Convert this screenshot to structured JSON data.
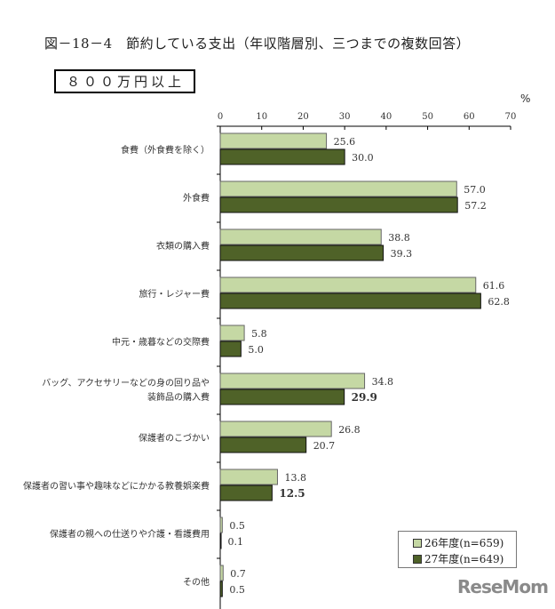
{
  "chart_data": {
    "type": "bar",
    "orientation": "horizontal",
    "title": "図－18－4　節約している支出（年収階層別、三つまでの複数回答）",
    "subtitle": "８００万円以上",
    "unit": "%",
    "xlim": [
      0,
      70
    ],
    "ticks": [
      "0",
      "10",
      "20",
      "30",
      "40",
      "50",
      "60",
      "70"
    ],
    "categories": [
      [
        "食費（外食費を除く）"
      ],
      [
        "外食費"
      ],
      [
        "衣類の購入費"
      ],
      [
        "旅行・レジャー費"
      ],
      [
        "中元・歳暮などの交際費"
      ],
      [
        "バッグ、アクセサリーなどの身の回り品や",
        "装飾品の購入費"
      ],
      [
        "保護者のこづかい"
      ],
      [
        "保護者の習い事や趣味などにかかる教養娯楽費"
      ],
      [
        "保護者の親への仕送りや介護・看護費用"
      ],
      [
        "その他"
      ]
    ],
    "series": [
      {
        "name": "26年度(n=659)",
        "color": "#c5d8a4",
        "values": [
          25.6,
          57.0,
          38.8,
          61.6,
          5.8,
          34.8,
          26.8,
          13.8,
          0.5,
          0.7
        ],
        "labels": [
          "25.6",
          "57.0",
          "38.8",
          "61.6",
          "5.8",
          "34.8",
          "26.8",
          "13.8",
          "0.5",
          "0.7"
        ]
      },
      {
        "name": "27年度(n=649)",
        "color": "#4f6228",
        "values": [
          30.0,
          57.2,
          39.3,
          62.8,
          5.0,
          29.9,
          20.7,
          12.5,
          0.1,
          0.5
        ],
        "labels": [
          "30.0",
          "57.2",
          "39.3",
          "62.8",
          "5.0",
          "29.9",
          "20.7",
          "12.5",
          "0.1",
          "0.5"
        ],
        "bold_labels": [
          5,
          7
        ]
      }
    ],
    "legend": "bottom-right",
    "grid": false
  },
  "watermark": "ReseMom"
}
